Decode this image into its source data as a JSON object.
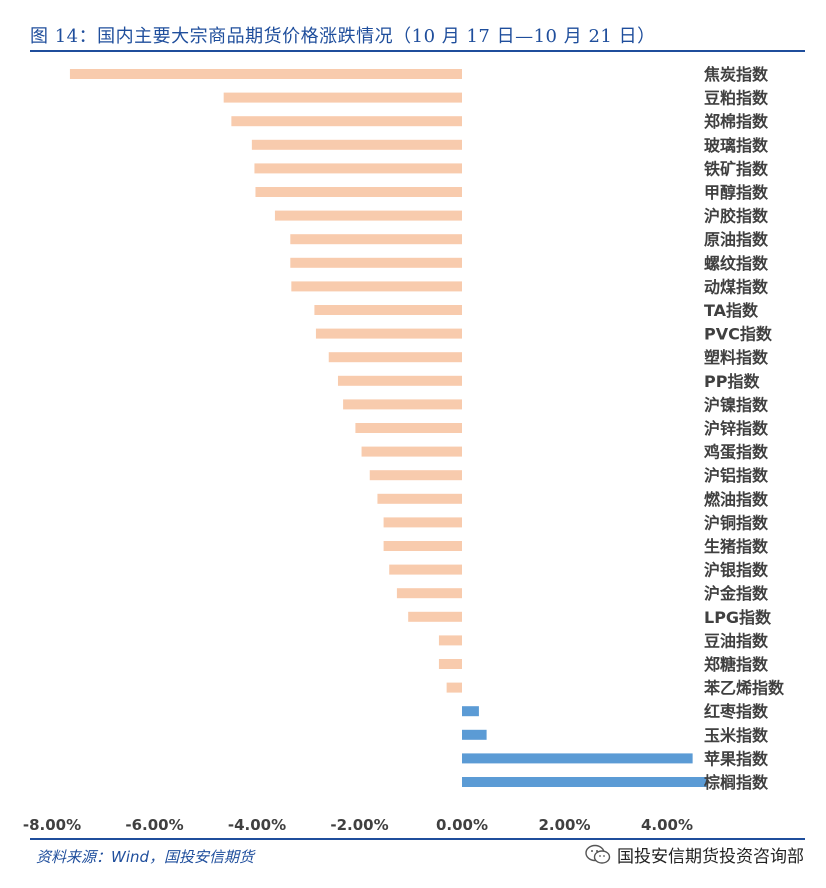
{
  "header": {
    "title": "图 14：国内主要大宗商品期货价格涨跌情况（10 月 17 日—10 月 21 日）"
  },
  "footer": {
    "source": "资料来源：Wind，国投安信期货",
    "watermark": "国投安信期货投资咨询部"
  },
  "colors": {
    "negative": "#f8cbad",
    "positive": "#5b9bd5",
    "title": "#1f4e9c",
    "label": "#404040"
  },
  "chart_data": {
    "type": "bar",
    "orientation": "horizontal",
    "title": "",
    "xlabel": "",
    "ylabel": "",
    "xlim": [
      -0.09,
      0.05
    ],
    "grid": false,
    "legend": "none",
    "x_ticks": [
      "-8.00%",
      "-6.00%",
      "-4.00%",
      "-2.00%",
      "0.00%",
      "2.00%",
      "4.00%"
    ],
    "x_tick_values": [
      -0.08,
      -0.06,
      -0.04,
      -0.02,
      0.0,
      0.02,
      0.04
    ],
    "categories": [
      "焦炭指数",
      "豆粕指数",
      "郑棉指数",
      "玻璃指数",
      "铁矿指数",
      "甲醇指数",
      "沪胶指数",
      "原油指数",
      "螺纹指数",
      "动煤指数",
      "TA指数",
      "PVC指数",
      "塑料指数",
      "PP指数",
      "沪镍指数",
      "沪锌指数",
      "鸡蛋指数",
      "沪铝指数",
      "燃油指数",
      "沪铜指数",
      "生猪指数",
      "沪银指数",
      "沪金指数",
      "LPG指数",
      "豆油指数",
      "郑糖指数",
      "苯乙烯指数",
      "红枣指数",
      "玉米指数",
      "苹果指数",
      "棕榈指数"
    ],
    "values": [
      -0.0765,
      -0.0465,
      -0.045,
      -0.041,
      -0.0405,
      -0.0403,
      -0.0365,
      -0.0335,
      -0.0335,
      -0.0333,
      -0.0288,
      -0.0285,
      -0.026,
      -0.0242,
      -0.0232,
      -0.0208,
      -0.0196,
      -0.018,
      -0.0165,
      -0.0153,
      -0.0153,
      -0.0142,
      -0.0127,
      -0.0105,
      -0.0045,
      -0.0045,
      -0.003,
      0.0033,
      0.0048,
      0.045,
      0.048
    ]
  }
}
